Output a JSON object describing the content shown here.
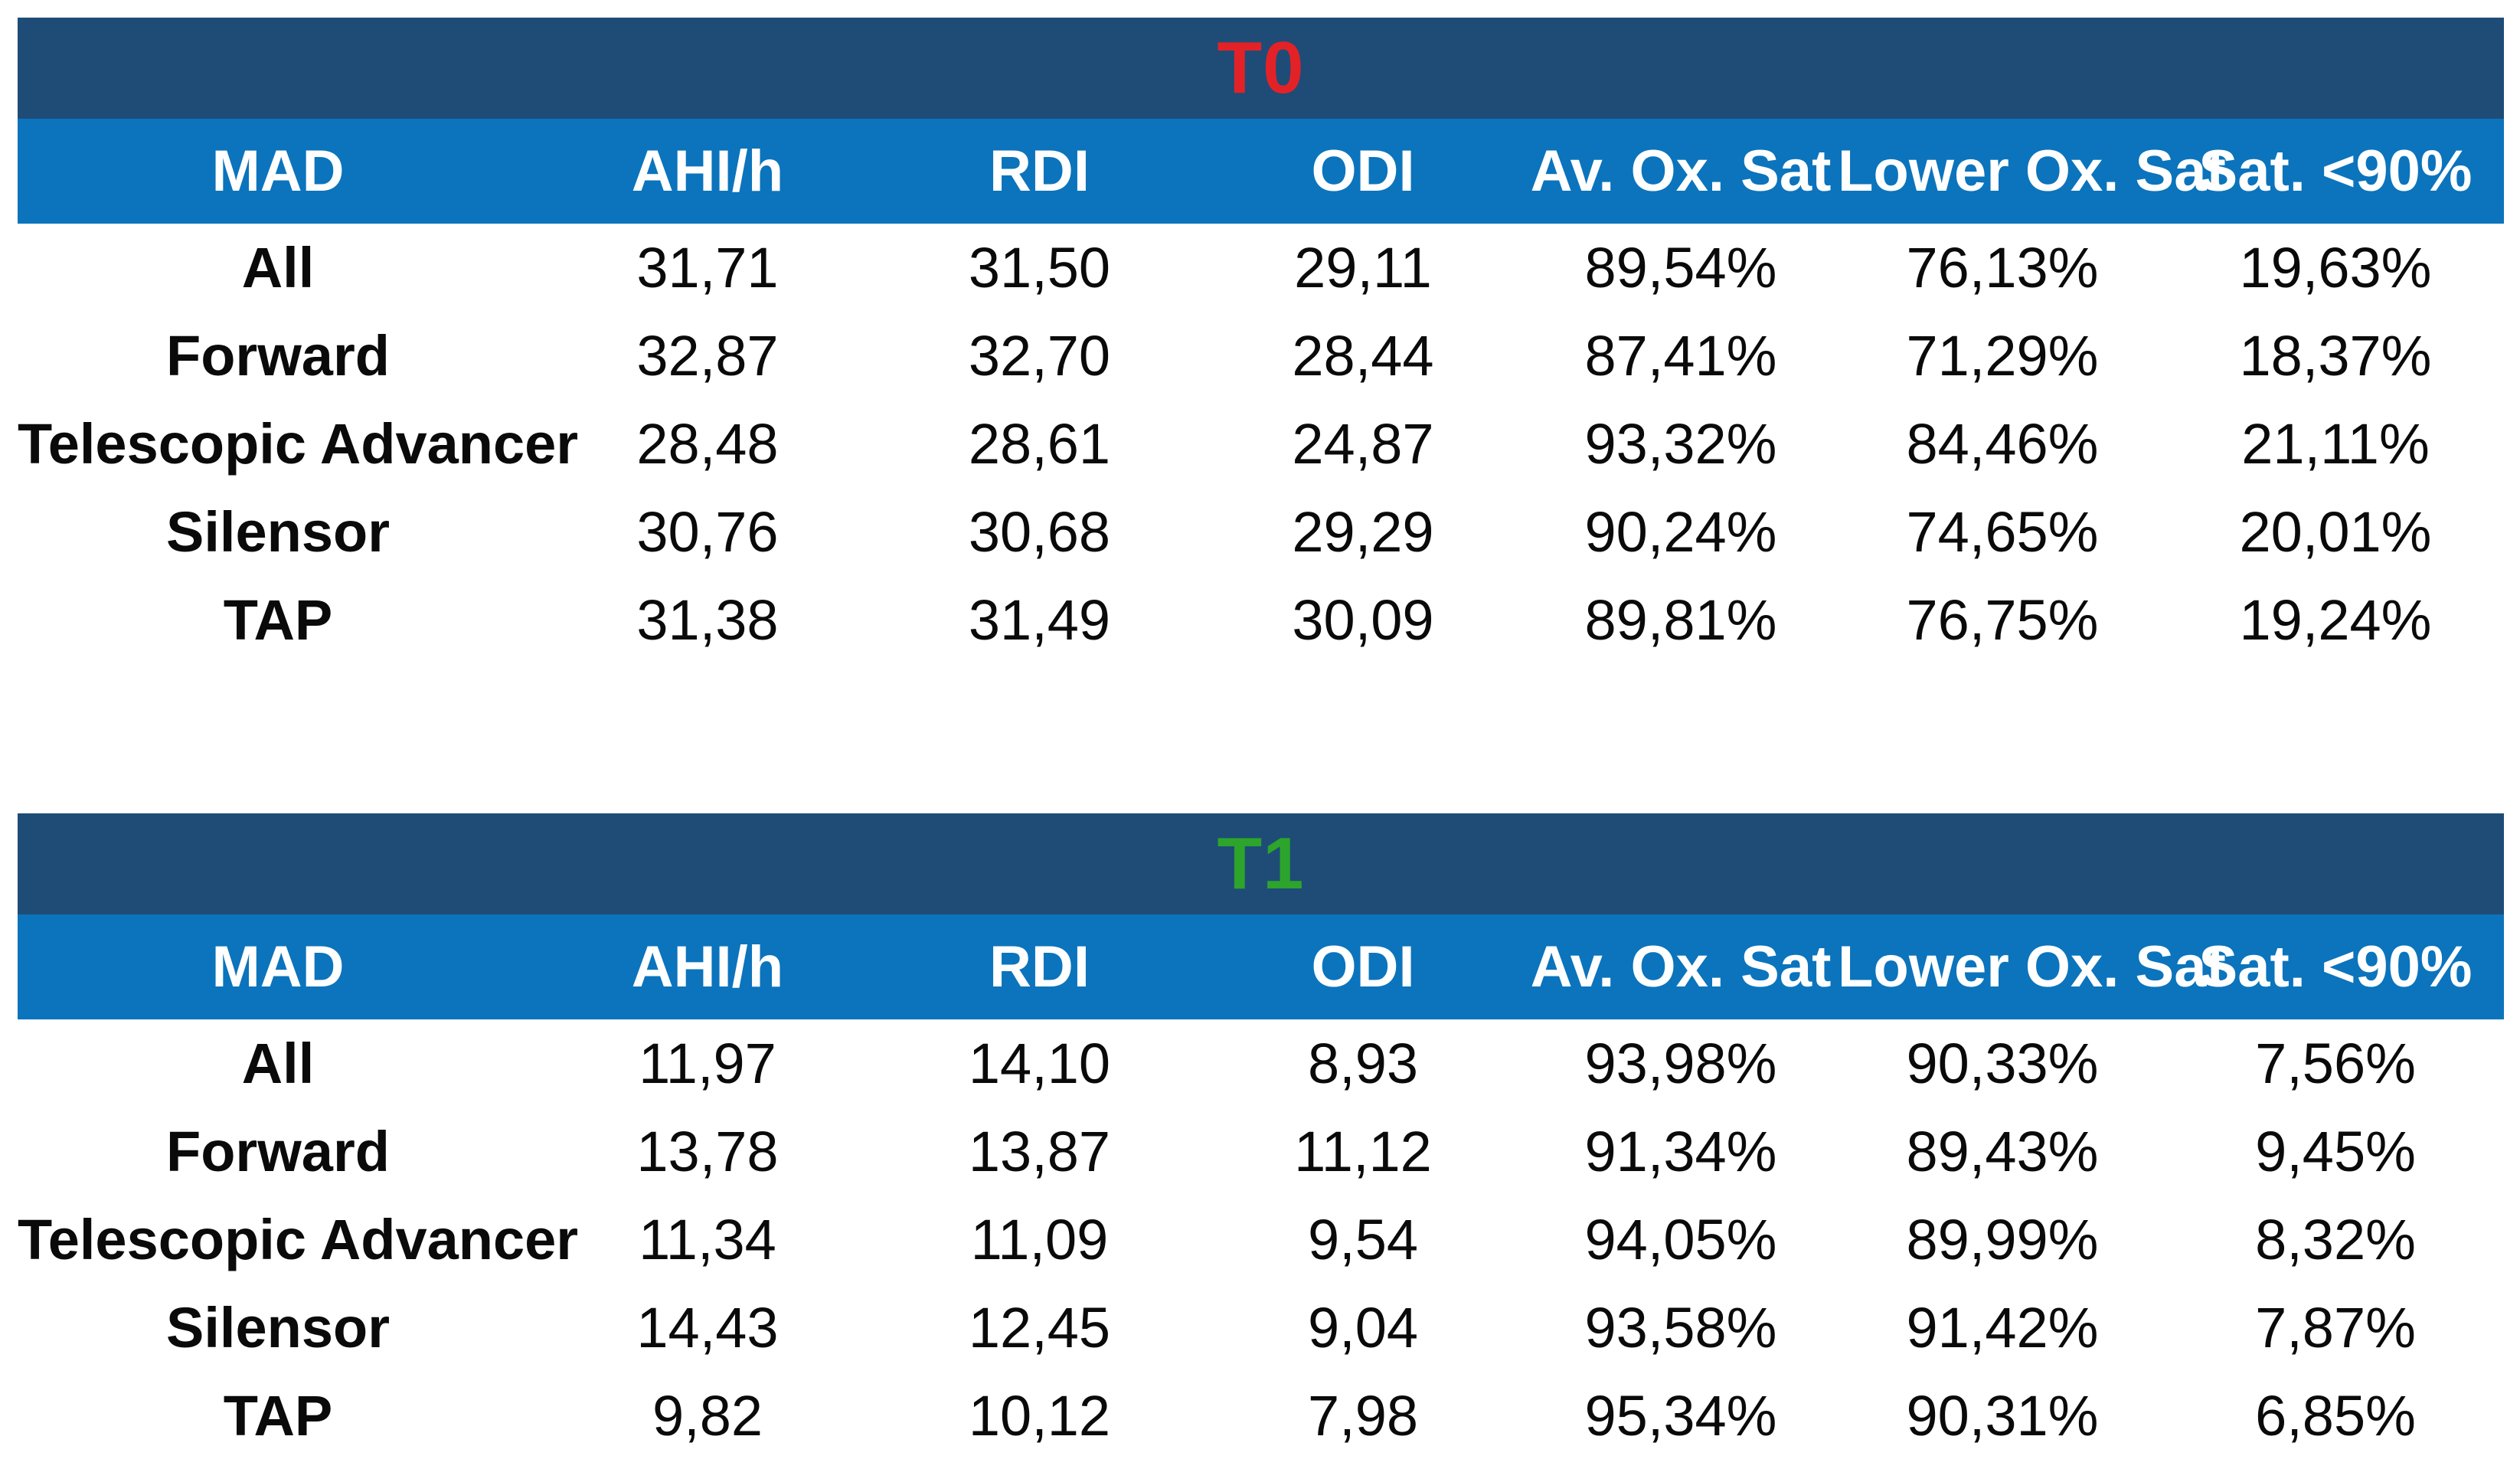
{
  "colors": {
    "title_bar_background": "#1E4C77",
    "header_bar_background": "#0B74BC",
    "header_text": "#FFFFFF",
    "cell_text": "#0A0A0A",
    "t0_title_color": "#E32227",
    "t1_title_color": "#2DA42B",
    "page_background": "#FFFFFF"
  },
  "tables": [
    {
      "title": "T0",
      "title_color": "#E32227",
      "columns": [
        "MAD",
        "AHI/h",
        "RDI",
        "ODI",
        "Av. Ox. Sat",
        "Lower Ox. Sat",
        "Sat. <90%"
      ],
      "rows": [
        {
          "label": "All",
          "values": [
            "31,71",
            "31,50",
            "29,11",
            "89,54%",
            "76,13%",
            "19,63%"
          ]
        },
        {
          "label": "Forward",
          "values": [
            "32,87",
            "32,70",
            "28,44",
            "87,41%",
            "71,29%",
            "18,37%"
          ]
        },
        {
          "label": "Telescopic Advancer",
          "values": [
            "28,48",
            "28,61",
            "24,87",
            "93,32%",
            "84,46%",
            "21,11%"
          ]
        },
        {
          "label": "Silensor",
          "values": [
            "30,76",
            "30,68",
            "29,29",
            "90,24%",
            "74,65%",
            "20,01%"
          ]
        },
        {
          "label": "TAP",
          "values": [
            "31,38",
            "31,49",
            "30,09",
            "89,81%",
            "76,75%",
            "19,24%"
          ]
        }
      ]
    },
    {
      "title": "T1",
      "title_color": "#2DA42B",
      "columns": [
        "MAD",
        "AHI/h",
        "RDI",
        "ODI",
        "Av. Ox. Sat",
        "Lower Ox. Sat",
        "Sat. <90%"
      ],
      "rows": [
        {
          "label": "All",
          "values": [
            "11,97",
            "14,10",
            "8,93",
            "93,98%",
            "90,33%",
            "7,56%"
          ]
        },
        {
          "label": "Forward",
          "values": [
            "13,78",
            "13,87",
            "11,12",
            "91,34%",
            "89,43%",
            "9,45%"
          ]
        },
        {
          "label": "Telescopic Advancer",
          "values": [
            "11,34",
            "11,09",
            "9,54",
            "94,05%",
            "89,99%",
            "8,32%"
          ]
        },
        {
          "label": "Silensor",
          "values": [
            "14,43",
            "12,45",
            "9,04",
            "93,58%",
            "91,42%",
            "7,87%"
          ]
        },
        {
          "label": "TAP",
          "values": [
            "9,82",
            "10,12",
            "7,98",
            "95,34%",
            "90,31%",
            "6,85%"
          ]
        }
      ]
    }
  ]
}
